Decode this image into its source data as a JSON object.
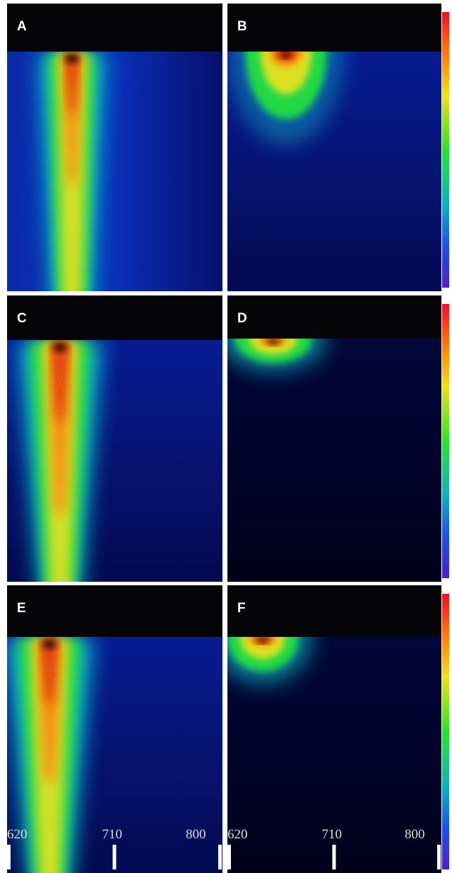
{
  "panels": [
    {
      "label": "A"
    },
    {
      "label": "B"
    },
    {
      "label": "C"
    },
    {
      "label": "D"
    },
    {
      "label": "E",
      "axis_labels": [
        "620",
        "710",
        "800"
      ]
    },
    {
      "label": "F",
      "axis_labels": [
        "620",
        "710",
        "800"
      ]
    }
  ]
}
